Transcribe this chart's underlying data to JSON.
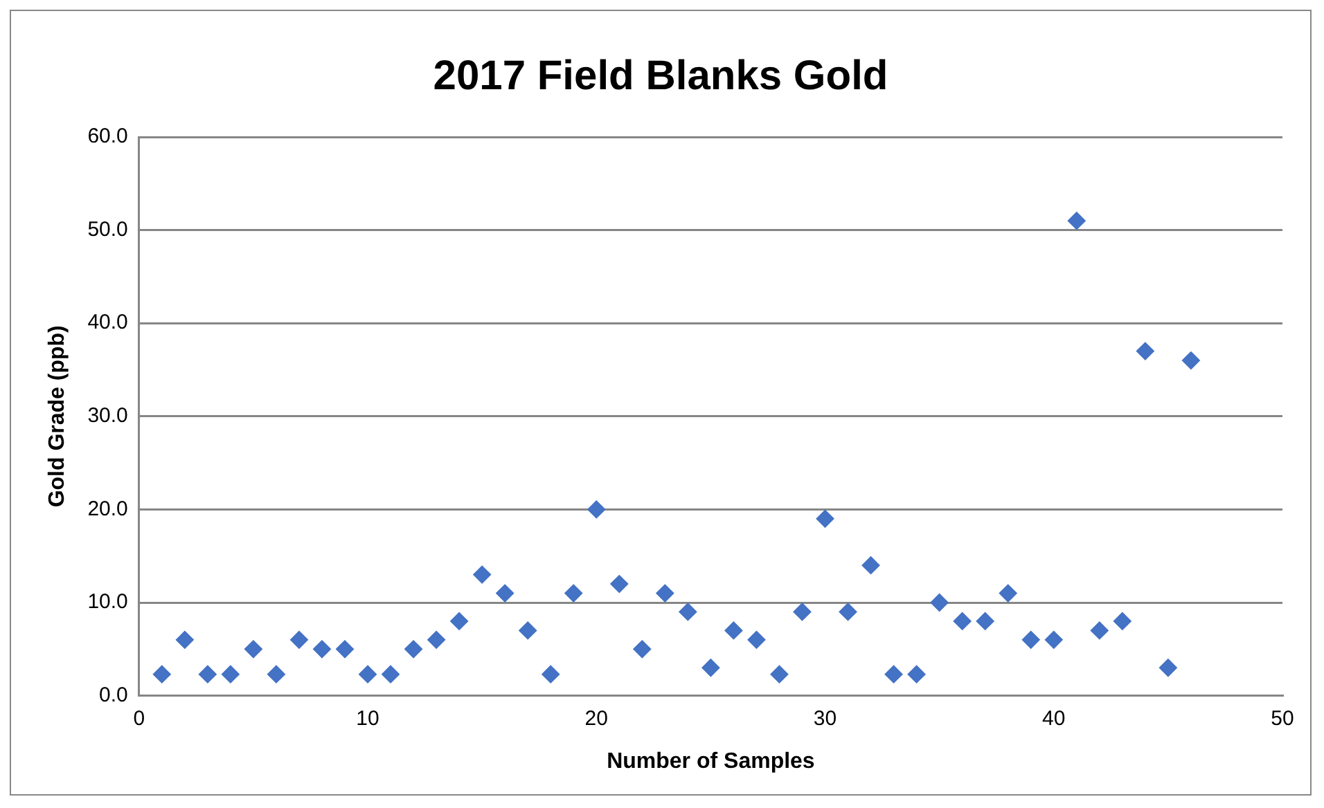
{
  "chart_data": {
    "type": "scatter",
    "title": "2017 Field Blanks Gold",
    "xlabel": "Number of Samples",
    "ylabel": "Gold Grade (ppb)",
    "x": [
      1,
      2,
      3,
      4,
      5,
      6,
      7,
      8,
      9,
      10,
      11,
      12,
      13,
      14,
      15,
      16,
      17,
      18,
      19,
      20,
      21,
      22,
      23,
      24,
      25,
      26,
      27,
      28,
      29,
      30,
      31,
      32,
      33,
      34,
      35,
      36,
      37,
      38,
      39,
      40,
      41,
      42,
      43,
      44,
      45,
      46
    ],
    "series": [
      {
        "color": "#4472c4",
        "values": [
          2.3,
          6,
          2.3,
          2.3,
          5,
          2.3,
          6,
          5,
          5,
          2.3,
          2.3,
          5,
          6,
          8,
          13,
          11,
          7,
          2.3,
          11,
          20,
          12,
          5,
          11,
          9,
          3,
          7,
          6,
          2.3,
          9,
          19,
          9,
          14,
          2.3,
          2.3,
          10,
          8,
          8,
          11,
          6,
          6,
          51,
          7,
          8,
          37,
          3,
          36
        ]
      }
    ],
    "xlim": [
      0,
      50
    ],
    "xticks": [
      0,
      10,
      20,
      30,
      40,
      50
    ],
    "ylim": [
      0,
      60
    ],
    "yticks": [
      {
        "value": 0,
        "label": "0.0"
      },
      {
        "value": 10,
        "label": "10.0"
      },
      {
        "value": 20,
        "label": "20.0"
      },
      {
        "value": 30,
        "label": "30.0"
      },
      {
        "value": 40,
        "label": "40.0"
      },
      {
        "value": 50,
        "label": "50.0"
      },
      {
        "value": 60,
        "label": "60.0"
      }
    ],
    "grid": "y",
    "legend": false,
    "marker": "diamond"
  }
}
